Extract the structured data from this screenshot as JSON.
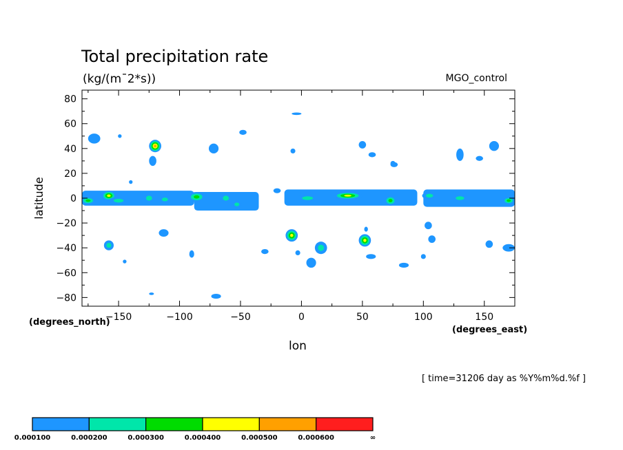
{
  "chart_data": {
    "type": "heatmap",
    "title": "Total precipitation rate",
    "units_label": "(kg/(m¯2*s))",
    "dataset_label": "MGO_control",
    "xlabel": "lon",
    "ylabel": "latitude",
    "x_units_label": "(degrees_east)",
    "y_units_label": "(degrees_north)",
    "time_label": "[ time=31206 day as %Y%m%d.%f ]",
    "xlim": [
      -180,
      175
    ],
    "ylim": [
      -87,
      87
    ],
    "x_ticks": [
      -150,
      -100,
      -50,
      0,
      50,
      100,
      150
    ],
    "x_tick_labels": [
      "−150",
      "−100",
      "−50",
      "0",
      "50",
      "100",
      "150"
    ],
    "y_ticks": [
      80,
      60,
      40,
      20,
      0,
      -20,
      -40,
      -60,
      -80
    ],
    "y_tick_labels": [
      "80",
      "60",
      "40",
      "20",
      "0",
      "−20",
      "−40",
      "−60",
      "−80"
    ],
    "levels": [
      0.0001,
      0.0002,
      0.0003,
      0.0004,
      0.0005,
      0.0006
    ],
    "level_colors": [
      "#1e96ff",
      "#00e6aa",
      "#00dc00",
      "#ffff00",
      "#ffa000",
      "#ff1e1e"
    ],
    "colorbar_labels": [
      "0.000100",
      "0.000200",
      "0.000300",
      "0.000400",
      "0.000500",
      "0.000600",
      "∞"
    ],
    "features": [
      {
        "type": "band",
        "lon": [
          -180,
          -88
        ],
        "lat": [
          -6,
          6
        ],
        "level": 1
      },
      {
        "type": "band",
        "lon": [
          -88,
          -35
        ],
        "lat": [
          -10,
          5
        ],
        "level": 1
      },
      {
        "type": "band",
        "lon": [
          -14,
          95
        ],
        "lat": [
          -6,
          7
        ],
        "level": 1
      },
      {
        "type": "band",
        "lon": [
          100,
          175
        ],
        "lat": [
          -7,
          7
        ],
        "level": 1
      },
      {
        "type": "blob",
        "lon": -175,
        "lat": -2,
        "rlon": 6,
        "rlat": 3,
        "levels": 3
      },
      {
        "type": "blob",
        "lon": -158,
        "lat": 2,
        "rlon": 6,
        "rlat": 4,
        "levels": 4
      },
      {
        "type": "blob",
        "lon": -150,
        "lat": -2,
        "rlon": 8,
        "rlat": 3,
        "levels": 2
      },
      {
        "type": "blob",
        "lon": -125,
        "lat": 0,
        "rlon": 5,
        "rlat": 4,
        "levels": 2
      },
      {
        "type": "blob",
        "lon": -112,
        "lat": -1,
        "rlon": 5,
        "rlat": 3,
        "levels": 2
      },
      {
        "type": "blob",
        "lon": -86,
        "lat": 1,
        "rlon": 7,
        "rlat": 4,
        "levels": 3
      },
      {
        "type": "blob",
        "lon": -62,
        "lat": 0,
        "rlon": 5,
        "rlat": 4,
        "levels": 2
      },
      {
        "type": "blob",
        "lon": -53,
        "lat": -5,
        "rlon": 4,
        "rlat": 3,
        "levels": 2
      },
      {
        "type": "blob",
        "lon": 5,
        "lat": 0,
        "rlon": 9,
        "rlat": 3,
        "levels": 2
      },
      {
        "type": "blob",
        "lon": 38,
        "lat": 2,
        "rlon": 12,
        "rlat": 3,
        "levels": 4
      },
      {
        "type": "blob",
        "lon": 73,
        "lat": -2,
        "rlon": 5,
        "rlat": 4,
        "levels": 3
      },
      {
        "type": "blob",
        "lon": 105,
        "lat": 2,
        "rlon": 6,
        "rlat": 3,
        "levels": 2
      },
      {
        "type": "blob",
        "lon": 130,
        "lat": 0,
        "rlon": 7,
        "rlat": 3,
        "levels": 2
      },
      {
        "type": "blob",
        "lon": 170,
        "lat": -2,
        "rlon": 5,
        "rlat": 3,
        "levels": 3
      },
      {
        "type": "blob",
        "lon": -120,
        "lat": 42,
        "rlon": 5,
        "rlat": 5,
        "levels": 5
      },
      {
        "type": "blob",
        "lon": -122,
        "lat": 30,
        "rlon": 3,
        "rlat": 4,
        "levels": 1
      },
      {
        "type": "blob",
        "lon": -170,
        "lat": 48,
        "rlon": 5,
        "rlat": 4,
        "levels": 1
      },
      {
        "type": "blob",
        "lon": -72,
        "lat": 40,
        "rlon": 4,
        "rlat": 4,
        "levels": 1
      },
      {
        "type": "blob",
        "lon": -48,
        "lat": 53,
        "rlon": 3,
        "rlat": 2,
        "levels": 1
      },
      {
        "type": "blob",
        "lon": 50,
        "lat": 43,
        "rlon": 3,
        "rlat": 3,
        "levels": 1
      },
      {
        "type": "blob",
        "lon": 58,
        "lat": 35,
        "rlon": 3,
        "rlat": 2,
        "levels": 1
      },
      {
        "type": "blob",
        "lon": 76,
        "lat": 27,
        "rlon": 3,
        "rlat": 2,
        "levels": 1
      },
      {
        "type": "blob",
        "lon": 130,
        "lat": 35,
        "rlon": 3,
        "rlat": 5,
        "levels": 1
      },
      {
        "type": "blob",
        "lon": 158,
        "lat": 42,
        "rlon": 4,
        "rlat": 4,
        "levels": 1
      },
      {
        "type": "blob",
        "lon": 146,
        "lat": 32,
        "rlon": 3,
        "rlat": 2,
        "levels": 1
      },
      {
        "type": "blob",
        "lon": -8,
        "lat": -30,
        "rlon": 5,
        "rlat": 5,
        "levels": 4
      },
      {
        "type": "blob",
        "lon": 52,
        "lat": -34,
        "rlon": 5,
        "rlat": 5,
        "levels": 4
      },
      {
        "type": "blob",
        "lon": 16,
        "lat": -40,
        "rlon": 5,
        "rlat": 5,
        "levels": 2
      },
      {
        "type": "blob",
        "lon": -158,
        "lat": -38,
        "rlon": 4,
        "rlat": 4,
        "levels": 2
      },
      {
        "type": "blob",
        "lon": -113,
        "lat": -28,
        "rlon": 4,
        "rlat": 3,
        "levels": 1
      },
      {
        "type": "blob",
        "lon": 104,
        "lat": -22,
        "rlon": 3,
        "rlat": 3,
        "levels": 1
      },
      {
        "type": "blob",
        "lon": 107,
        "lat": -33,
        "rlon": 3,
        "rlat": 3,
        "levels": 1
      },
      {
        "type": "blob",
        "lon": 170,
        "lat": -40,
        "rlon": 5,
        "rlat": 3,
        "levels": 1
      },
      {
        "type": "blob",
        "lon": 154,
        "lat": -37,
        "rlon": 3,
        "rlat": 3,
        "levels": 1
      },
      {
        "type": "blob",
        "lon": 8,
        "lat": -52,
        "rlon": 4,
        "rlat": 4,
        "levels": 1
      },
      {
        "type": "blob",
        "lon": 57,
        "lat": -47,
        "rlon": 4,
        "rlat": 2,
        "levels": 1
      },
      {
        "type": "blob",
        "lon": 84,
        "lat": -54,
        "rlon": 4,
        "rlat": 2,
        "levels": 1
      },
      {
        "type": "blob",
        "lon": -90,
        "lat": -45,
        "rlon": 2,
        "rlat": 3,
        "levels": 1
      },
      {
        "type": "blob",
        "lon": -30,
        "lat": -43,
        "rlon": 3,
        "rlat": 2,
        "levels": 1
      },
      {
        "type": "blob",
        "lon": -70,
        "lat": -79,
        "rlon": 4,
        "rlat": 2,
        "levels": 1
      },
      {
        "type": "blob",
        "lon": -3,
        "lat": -44,
        "rlon": 2,
        "rlat": 2,
        "levels": 1
      },
      {
        "type": "blob",
        "lon": 53,
        "lat": -25,
        "rlon": 1.5,
        "rlat": 2,
        "levels": 1
      },
      {
        "type": "blob",
        "lon": -20,
        "lat": 6,
        "rlon": 3,
        "rlat": 2,
        "levels": 1
      },
      {
        "type": "blob",
        "lon": -4,
        "lat": 68,
        "rlon": 4,
        "rlat": 1,
        "levels": 1
      },
      {
        "type": "blob",
        "lon": -7,
        "lat": 38,
        "rlon": 2,
        "rlat": 2,
        "levels": 1
      },
      {
        "type": "blob",
        "lon": 75,
        "lat": 28,
        "rlon": 2,
        "rlat": 2,
        "levels": 1
      },
      {
        "type": "blob",
        "lon": -123,
        "lat": -77,
        "rlon": 2,
        "rlat": 1,
        "levels": 1
      },
      {
        "type": "blob",
        "lon": -145,
        "lat": -51,
        "rlon": 1.5,
        "rlat": 1.5,
        "levels": 1
      },
      {
        "type": "blob",
        "lon": -140,
        "lat": 13,
        "rlon": 1.5,
        "rlat": 1.5,
        "levels": 1
      },
      {
        "type": "blob",
        "lon": -149,
        "lat": 50,
        "rlon": 1.5,
        "rlat": 1.5,
        "levels": 1
      },
      {
        "type": "blob",
        "lon": 100,
        "lat": -47,
        "rlon": 2,
        "rlat": 2,
        "levels": 1
      }
    ]
  }
}
